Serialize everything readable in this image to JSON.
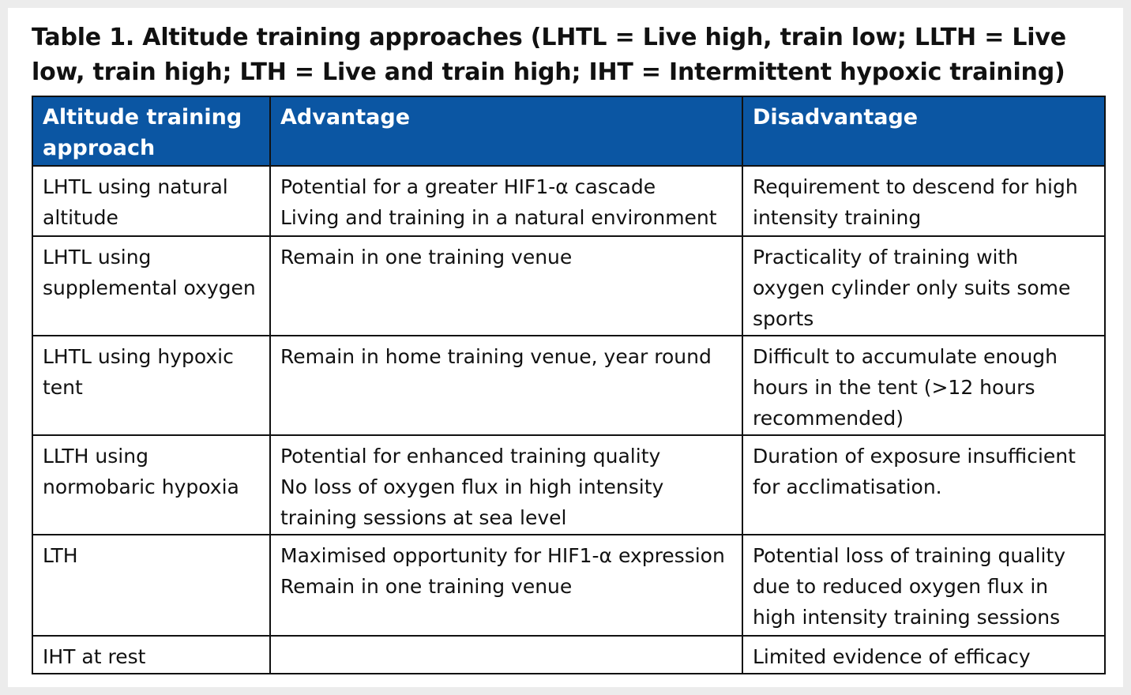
{
  "title": "Table 1. Altitude training approaches (LHTL = Live high, train low; LLTH = Live low, train high; LTH = Live and train high; IHT = Intermittent hypoxic training)",
  "table": {
    "header": [
      "Altitude training approach",
      "Advantage",
      "Disadvantage"
    ],
    "rows": [
      {
        "approach": "LHTL using natural altitude",
        "advantage": [
          "Potential for a greater HIF1-α cascade",
          "Living and training in a natural environment"
        ],
        "disadvantage": [
          "Requirement to descend for high intensity training"
        ]
      },
      {
        "approach": "LHTL using supplemental oxygen",
        "advantage": [
          "Remain in one training venue"
        ],
        "disadvantage": [
          "Practicality of training with oxygen cylinder only suits some sports"
        ]
      },
      {
        "approach": "LHTL using hypoxic tent",
        "advantage": [
          "Remain in home training venue, year round"
        ],
        "disadvantage": [
          "Difficult to accumulate enough hours in the tent (>12 hours recommended)"
        ]
      },
      {
        "approach": "LLTH using normobaric hypoxia",
        "advantage": [
          "Potential for enhanced training quality",
          "No loss of oxygen flux in high intensity training sessions at sea level"
        ],
        "disadvantage": [
          "Duration of exposure insufficient for acclimatisation."
        ]
      },
      {
        "approach": "LTH",
        "advantage": [
          "Maximised opportunity for HIF1-α expression",
          "Remain in one training venue"
        ],
        "disadvantage": [
          "Potential loss of training quality due to reduced oxygen flux in high intensity training sessions"
        ]
      },
      {
        "approach": "IHT at rest",
        "advantage": [],
        "disadvantage": [
          "Limited evidence of efficacy"
        ]
      }
    ]
  }
}
